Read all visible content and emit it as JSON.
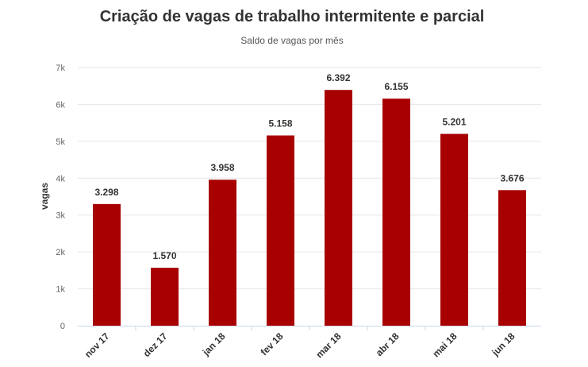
{
  "chart_data": {
    "type": "bar",
    "title": "Criação de vagas de trabalho intermitente e parcial",
    "subtitle": "Saldo de vagas por mês",
    "ylabel": "vagas",
    "xlabel": "",
    "categories": [
      "nov 17",
      "dez 17",
      "jan 18",
      "fev 18",
      "mar 18",
      "abr 18",
      "mai 18",
      "jun 18"
    ],
    "values": [
      3298,
      1570,
      3958,
      5158,
      6392,
      6155,
      5201,
      3676
    ],
    "data_labels": [
      "3.298",
      "1.570",
      "3.958",
      "5.158",
      "6.392",
      "6.155",
      "5.201",
      "3.676"
    ],
    "y_ticks": [
      0,
      1000,
      2000,
      3000,
      4000,
      5000,
      6000,
      7000
    ],
    "y_tick_labels": [
      "0",
      "1k",
      "2k",
      "3k",
      "4k",
      "5k",
      "6k",
      "7k"
    ],
    "ylim": [
      0,
      7000
    ],
    "grid": true,
    "legend": "none",
    "bar_color": "#a80000"
  }
}
